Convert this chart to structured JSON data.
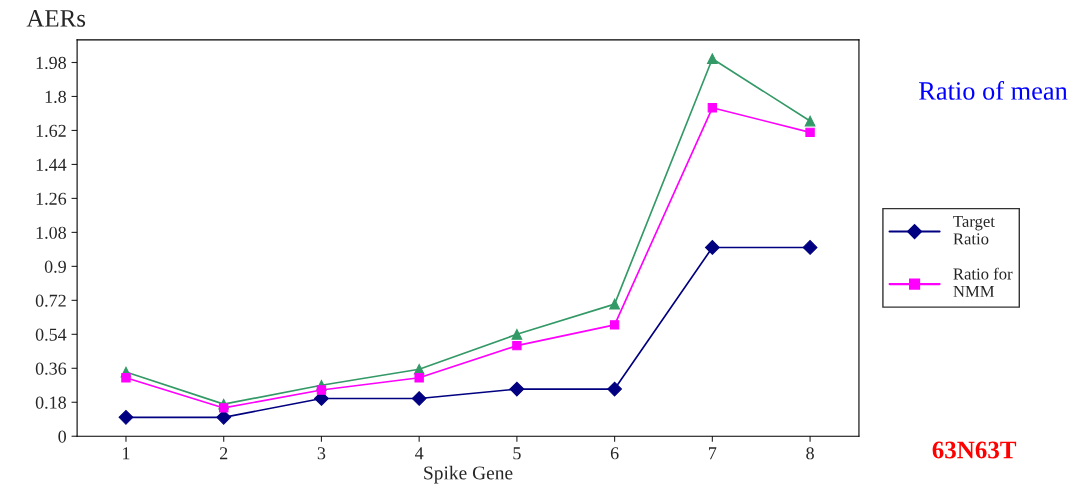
{
  "chart_data": {
    "type": "line",
    "ylabel": "AERs",
    "xlabel": "Spike Gene",
    "categories": [
      "1",
      "2",
      "3",
      "4",
      "5",
      "6",
      "7",
      "8"
    ],
    "series": [
      {
        "name": "Target Ratio",
        "color": "#000080",
        "values": [
          0.1,
          0.1,
          0.2,
          0.2,
          0.25,
          0.25,
          1.0,
          1.0
        ],
        "marker": "diamond"
      },
      {
        "name": "Ratio for NMM",
        "color": "#ff00ff",
        "values": [
          0.31,
          0.15,
          0.245,
          0.31,
          0.48,
          0.59,
          1.74,
          1.61
        ],
        "marker": "square"
      },
      {
        "color": "#339966",
        "values": [
          0.34,
          0.17,
          0.27,
          0.355,
          0.54,
          0.7,
          2.0,
          1.67
        ],
        "marker": "triangle"
      }
    ],
    "ylim": [
      0,
      2.1
    ],
    "yticks": [
      0,
      0.18,
      0.36,
      0.54,
      0.72,
      0.9,
      1.08,
      1.26,
      1.44,
      1.62,
      1.8,
      1.98
    ],
    "grid": false,
    "legend": "right",
    "line_style": "solid",
    "annotations": [
      "Ratio of mean",
      "63N63T"
    ]
  }
}
